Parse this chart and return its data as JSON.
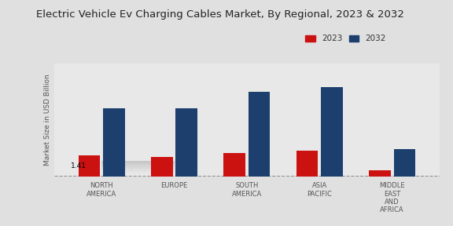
{
  "title": "Electric Vehicle Ev Charging Cables Market, By Regional, 2023 & 2032",
  "ylabel": "Market Size in USD Billion",
  "categories": [
    "NORTH\nAMERICA",
    "EUROPE",
    "SOUTH\nAMERICA",
    "ASIA\nPACIFIC",
    "MIDDLE\nEAST\nAND\nAFRICA"
  ],
  "values_2023": [
    1.41,
    1.3,
    1.52,
    1.68,
    0.38
  ],
  "values_2032": [
    4.5,
    4.5,
    5.6,
    5.9,
    1.8
  ],
  "color_2023": "#cc1111",
  "color_2032": "#1c3f6e",
  "annotation_text": "1.41",
  "background_color_top": "#e8e8e8",
  "background_color_bottom": "#f5f5f5",
  "bar_width": 0.3,
  "legend_labels": [
    "2023",
    "2032"
  ],
  "ylim": [
    0,
    7.5
  ],
  "title_fontsize": 9.5,
  "label_fontsize": 6.5,
  "tick_fontsize": 6.0,
  "legend_fontsize": 7.5,
  "dashed_line_y": 0.05
}
